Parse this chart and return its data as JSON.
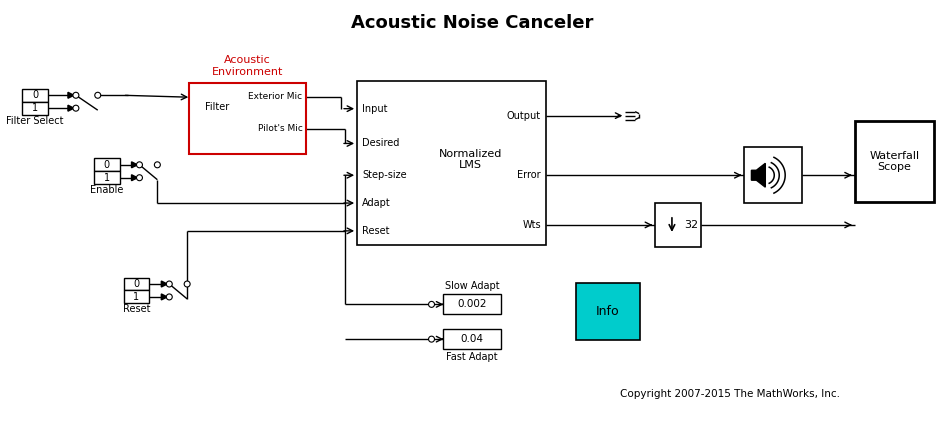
{
  "title": "Acoustic Noise Canceler",
  "title_fontsize": 13,
  "title_fontweight": "bold",
  "bg_color": "#ffffff",
  "red_label_color": "#cc0000",
  "cyan_fill": "#00cccc",
  "line_color": "#000000",
  "text_color": "#000000",
  "copyright": "Copyright 2007-2015 The MathWorks, Inc.",
  "filter_select_label": "Filter Select",
  "enable_label": "Enable",
  "reset_label": "Reset",
  "acoustic_label": "Acoustic\nEnvironment",
  "lms_label": "Normalized\nLMS",
  "waterfall_label": "Waterfall\nScope",
  "slow_adapt_label": "Slow Adapt",
  "fast_adapt_label": "Fast Adapt",
  "info_label": "Info",
  "output_label": "Output",
  "error_label": "Error",
  "wts_label": "Wts",
  "input_label": "Input",
  "desired_label": "Desired",
  "stepsize_label": "Step-size",
  "adapt_label": "Adapt",
  "reset_lms_label": "Reset",
  "exterior_mic_label": "Exterior Mic",
  "pilots_mic_label": "Pilot's Mic",
  "filter_label": "Filter",
  "downsample_label": "32",
  "val_002": "0.002",
  "val_004": "0.04"
}
